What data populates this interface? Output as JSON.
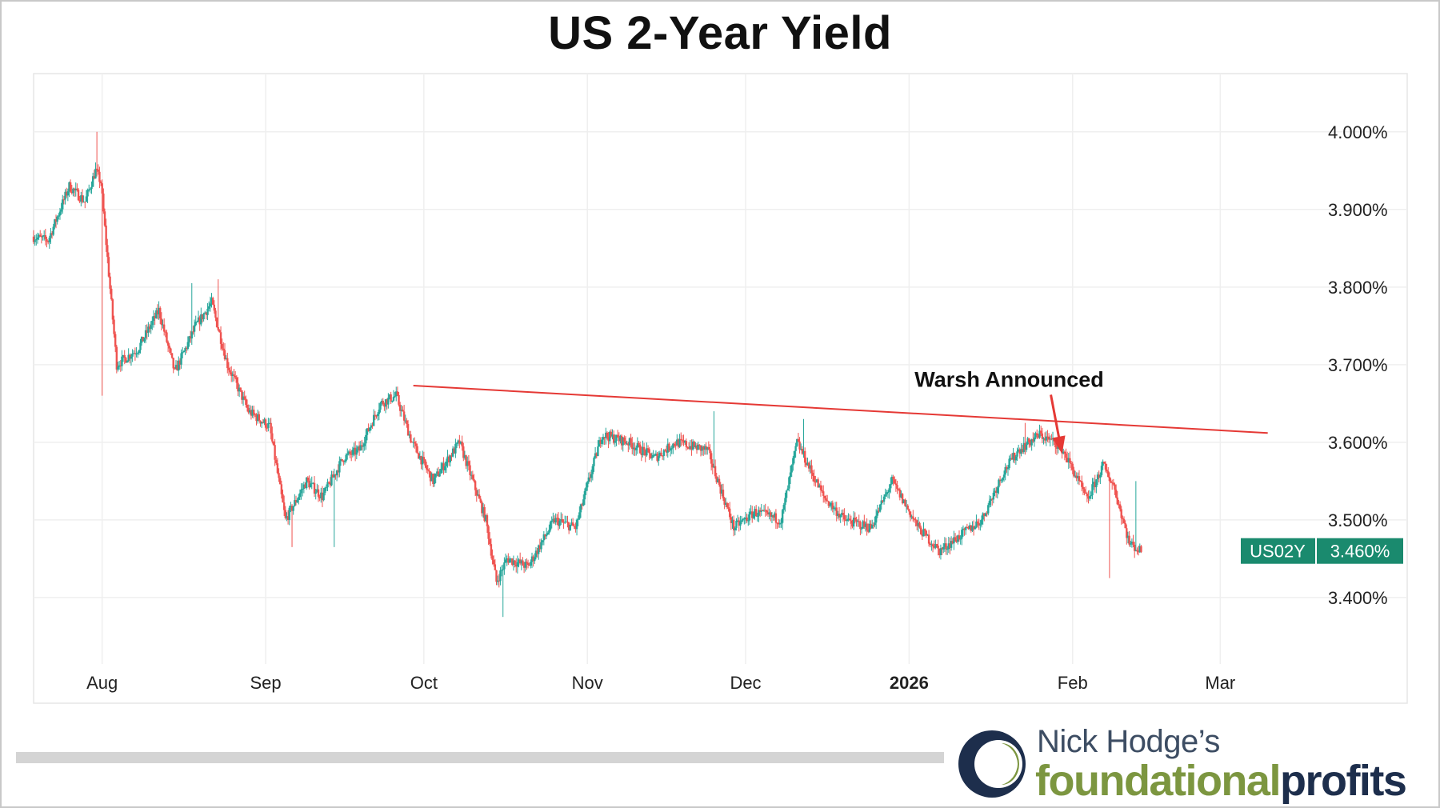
{
  "colors": {
    "up": "#26a69a",
    "down": "#ef5350",
    "trendline": "#e53935",
    "badge": "#1a8a6e",
    "grid": "#efefef",
    "logo_green": "#7c9640",
    "logo_navy": "#1d2e4c"
  },
  "chart_data": {
    "type": "candlestick",
    "title": "US 2-Year Yield",
    "symbol": "US02Y",
    "last_value_label": "3.460%",
    "y_axis": {
      "ticks": [
        "4.000%",
        "3.900%",
        "3.800%",
        "3.700%",
        "3.600%",
        "3.500%",
        "3.400%"
      ],
      "tick_values": [
        4.0,
        3.9,
        3.8,
        3.7,
        3.6,
        3.5,
        3.4
      ],
      "range": [
        3.335,
        4.075
      ],
      "position": "right"
    },
    "x_axis": {
      "labels": [
        "Aug",
        "Sep",
        "Oct",
        "Nov",
        "Dec",
        "2026",
        "Feb",
        "Mar"
      ],
      "label_dates": [
        "2025-08-01",
        "2025-09-01",
        "2025-10-01",
        "2025-11-01",
        "2025-12-01",
        "2026-01-01",
        "2026-02-01",
        "2026-03-01"
      ],
      "bold_labels": [
        "2026"
      ],
      "range": [
        "2025-07-19",
        "2026-03-19"
      ]
    },
    "grid": true,
    "series": [
      {
        "path_dates": [
          "2025-07-19",
          "2025-07-22",
          "2025-07-26",
          "2025-07-29",
          "2025-07-31",
          "2025-08-01",
          "2025-08-04",
          "2025-08-08",
          "2025-08-12",
          "2025-08-15",
          "2025-08-19",
          "2025-08-22",
          "2025-08-25",
          "2025-08-29",
          "2025-09-02",
          "2025-09-05",
          "2025-09-09",
          "2025-09-12",
          "2025-09-16",
          "2025-09-19",
          "2025-09-23",
          "2025-09-26",
          "2025-09-29",
          "2025-10-03",
          "2025-10-08",
          "2025-10-13",
          "2025-10-15",
          "2025-10-17",
          "2025-10-21",
          "2025-10-26",
          "2025-10-30",
          "2025-11-04",
          "2025-11-09",
          "2025-11-14",
          "2025-11-18",
          "2025-11-24",
          "2025-11-29",
          "2025-12-03",
          "2025-12-08",
          "2025-12-11",
          "2025-12-16",
          "2025-12-20",
          "2025-12-25",
          "2025-12-29",
          "2026-01-03",
          "2026-01-07",
          "2026-01-11",
          "2026-01-15",
          "2026-01-19",
          "2026-01-22",
          "2026-01-26",
          "2026-01-30",
          "2026-02-02",
          "2026-02-04",
          "2026-02-07",
          "2026-02-09",
          "2026-02-12",
          "2026-02-14"
        ],
        "path_values": [
          3.865,
          3.86,
          3.93,
          3.91,
          3.95,
          3.935,
          3.7,
          3.72,
          3.77,
          3.69,
          3.75,
          3.78,
          3.7,
          3.64,
          3.62,
          3.5,
          3.55,
          3.53,
          3.58,
          3.59,
          3.65,
          3.66,
          3.6,
          3.55,
          3.6,
          3.5,
          3.42,
          3.45,
          3.44,
          3.5,
          3.49,
          3.61,
          3.6,
          3.58,
          3.6,
          3.59,
          3.49,
          3.51,
          3.5,
          3.6,
          3.53,
          3.5,
          3.49,
          3.55,
          3.49,
          3.46,
          3.48,
          3.5,
          3.56,
          3.59,
          3.61,
          3.595,
          3.555,
          3.525,
          3.57,
          3.545,
          3.47,
          3.46
        ],
        "spikes": [
          {
            "date": "2025-07-31",
            "high": 4.0
          },
          {
            "date": "2025-08-01",
            "low": 3.66
          },
          {
            "date": "2025-08-18",
            "high": 3.805
          },
          {
            "date": "2025-08-23",
            "high": 3.81
          },
          {
            "date": "2025-09-06",
            "low": 3.465
          },
          {
            "date": "2025-09-14",
            "low": 3.465
          },
          {
            "date": "2025-10-16",
            "low": 3.375
          },
          {
            "date": "2025-11-25",
            "high": 3.64
          },
          {
            "date": "2025-12-12",
            "high": 3.63
          },
          {
            "date": "2026-01-23",
            "high": 3.625
          },
          {
            "date": "2026-02-08",
            "low": 3.425
          },
          {
            "date": "2026-02-13",
            "high": 3.55
          }
        ]
      }
    ],
    "trendline": {
      "start": [
        "2025-09-29",
        3.673
      ],
      "end": [
        "2026-03-10",
        3.612
      ]
    },
    "annotations": [
      {
        "text": "Warsh Announced",
        "arrow_to": [
          "2026-01-30",
          3.585
        ]
      }
    ]
  },
  "logo": {
    "byline": "Nick Hodge’s",
    "brand_part1": "foundational",
    "brand_part2": "profits"
  }
}
